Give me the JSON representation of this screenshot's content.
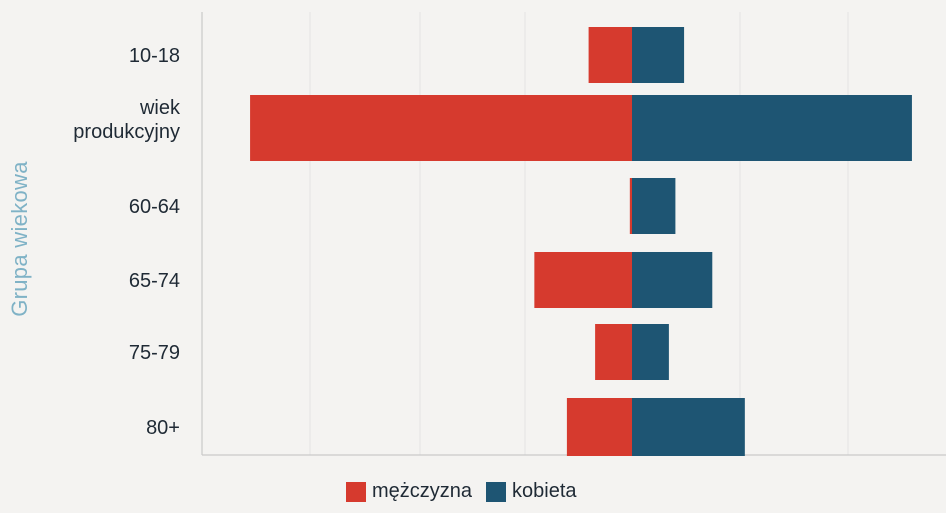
{
  "chart_data": {
    "type": "bar",
    "orientation": "horizontal-diverging",
    "ylabel": "Grupa wiekowa",
    "categories": [
      "10-18",
      "wiek produkcyjny",
      "60-64",
      "65-74",
      "75-79",
      "80+"
    ],
    "series": [
      {
        "name": "mężczyzna",
        "color": "#d63a2e",
        "values": [
          -2.0,
          -17.6,
          -0.1,
          -4.5,
          -1.7,
          -3.0
        ]
      },
      {
        "name": "kobieta",
        "color": "#1e5573",
        "values": [
          2.4,
          12.9,
          2.0,
          3.7,
          1.7,
          5.2
        ]
      }
    ],
    "grid": true,
    "legend_position": "bottom"
  }
}
